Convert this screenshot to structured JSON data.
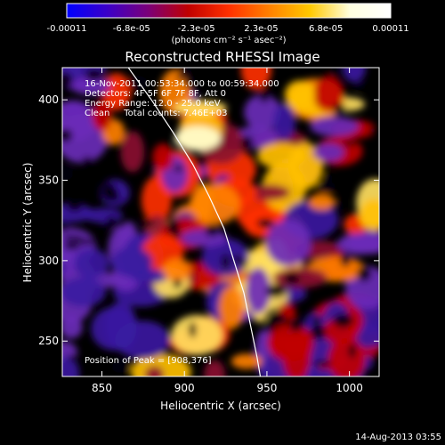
{
  "colorbar": {
    "tick_labels": [
      "-0.00011",
      "-6.8e-05",
      "-2.3e-05",
      "2.3e-05",
      "6.8e-05",
      "0.00011"
    ],
    "range": [
      -0.00011,
      0.00011
    ],
    "units_label": "(photons cm⁻² s⁻¹ asec⁻²)",
    "colors": [
      "#0000ff",
      "#3b00c8",
      "#7a007a",
      "#c00000",
      "#ff3000",
      "#ff8000",
      "#ffc800",
      "#ffffe0",
      "#ffffff"
    ]
  },
  "chart_data": {
    "type": "heatmap",
    "title": "Reconstructed RHESSI Image",
    "xlabel": "Heliocentric X (arcsec)",
    "ylabel": "Heliocentric Y (arcsec)",
    "xlim": [
      826,
      1018
    ],
    "ylim": [
      228,
      420
    ],
    "x_ticks": [
      "850",
      "900",
      "950",
      "1000"
    ],
    "y_ticks": [
      "250",
      "300",
      "350",
      "400"
    ],
    "x_tick_values": [
      850,
      900,
      950,
      1000
    ],
    "y_tick_values": [
      250,
      300,
      350,
      400
    ],
    "annotations": [
      "16-Nov-2011 00:53:34.000 to 00:59:34.000",
      "Detectors: 4F 5F 6F 7F 8F, Att 0",
      "Energy Range: 12.0 - 25.0 keV",
      "Clean     Total counts: 7.46E+03"
    ],
    "peak_label": "Position of Peak = [908,376]",
    "peak": [
      908,
      376
    ],
    "limb_curve": [
      [
        866,
        420
      ],
      [
        880,
        400
      ],
      [
        893,
        380
      ],
      [
        905,
        360
      ],
      [
        915,
        340
      ],
      [
        924,
        320
      ],
      [
        930,
        300
      ],
      [
        936,
        280
      ],
      [
        940,
        260
      ],
      [
        944,
        240
      ],
      [
        946,
        228
      ]
    ],
    "grid": false
  },
  "timestamp": "14-Aug-2013 03:55"
}
